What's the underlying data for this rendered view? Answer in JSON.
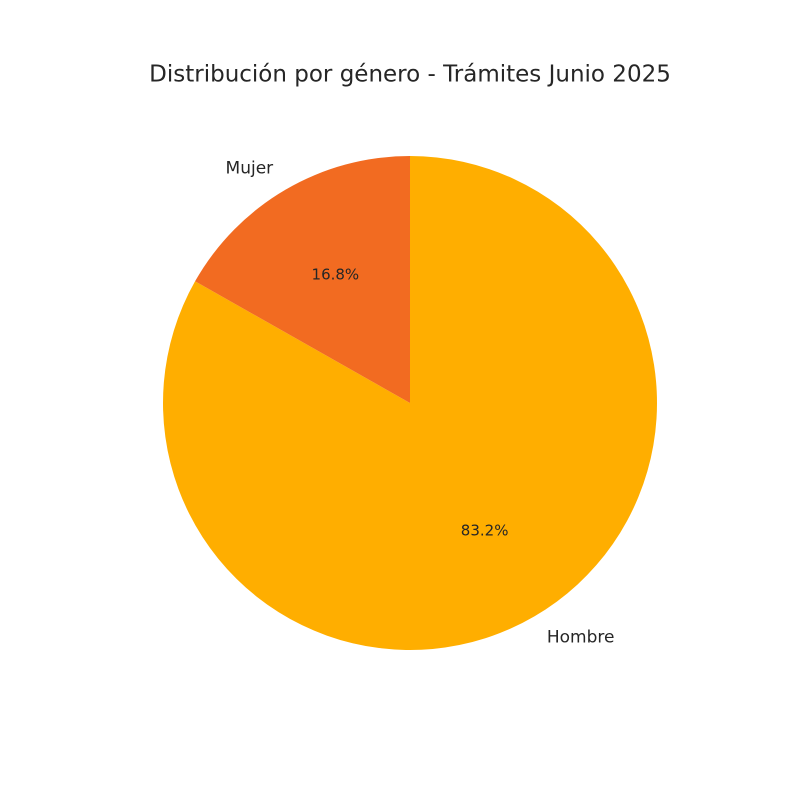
{
  "chart_data": {
    "type": "pie",
    "title": "Distribución por género - Trámites Junio 2025",
    "categories": [
      "Hombre",
      "Mujer"
    ],
    "values": [
      83.2,
      16.8
    ],
    "value_labels": [
      "83.2%",
      "16.8%"
    ],
    "colors": [
      "#ffae00",
      "#f26b21"
    ]
  }
}
